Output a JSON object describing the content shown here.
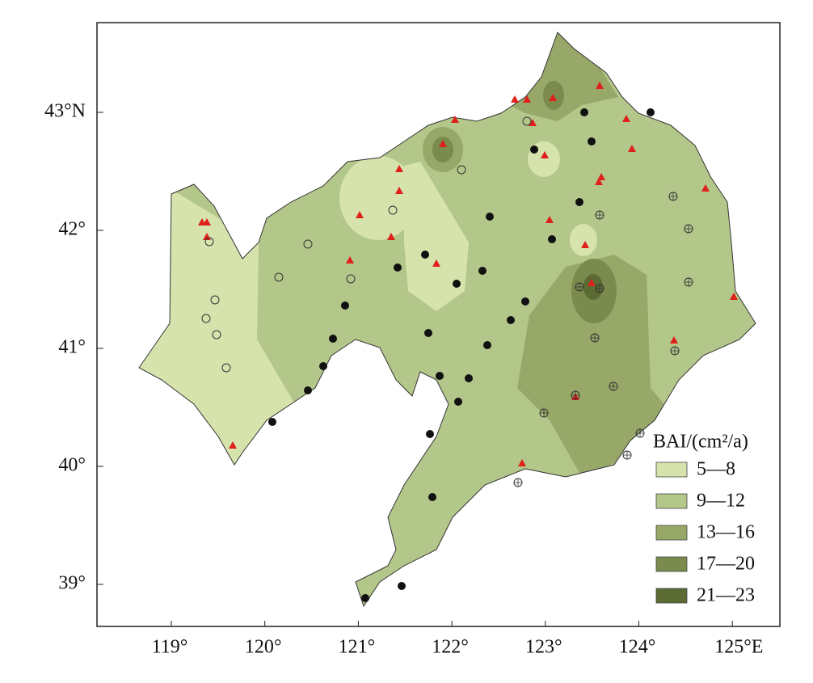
{
  "map": {
    "x_axis": {
      "ticks": [
        "119°",
        "120°",
        "121°",
        "122°",
        "123°",
        "124°",
        "125°E"
      ]
    },
    "y_axis": {
      "ticks": [
        "43°N",
        "42°",
        "41°",
        "40°",
        "39°"
      ]
    },
    "legend": {
      "title": "BAI/(cm²/a)",
      "items": [
        {
          "label": "5—8",
          "color": "#d6e3ad"
        },
        {
          "label": "9—12",
          "color": "#b4c78a"
        },
        {
          "label": "13—16",
          "color": "#97a868"
        },
        {
          "label": "17—20",
          "color": "#7a8b4d"
        },
        {
          "label": "21—23",
          "color": "#5c6b34"
        }
      ]
    }
  }
}
